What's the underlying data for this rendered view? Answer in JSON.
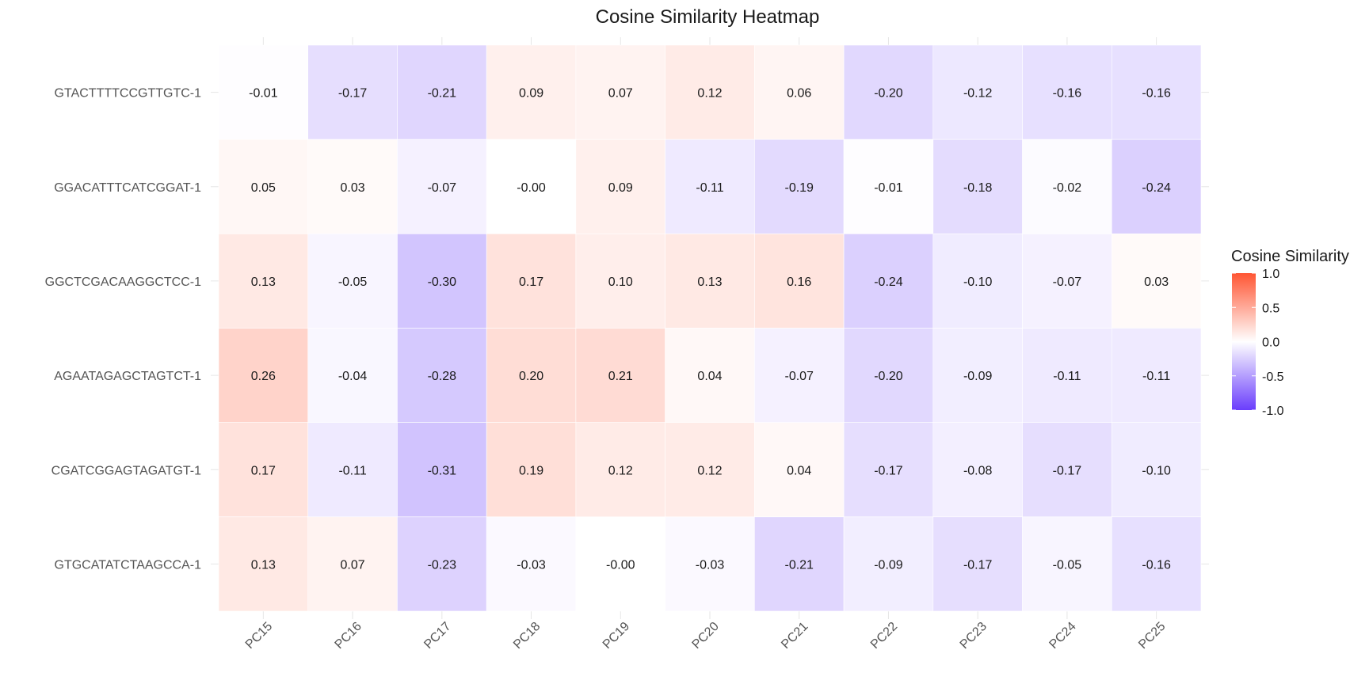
{
  "chart_data": {
    "type": "heatmap",
    "title": "Cosine Similarity Heatmap",
    "xlabel": "",
    "ylabel": "",
    "x_categories": [
      "PC15",
      "PC16",
      "PC17",
      "PC18",
      "PC19",
      "PC20",
      "PC21",
      "PC22",
      "PC23",
      "PC24",
      "PC25"
    ],
    "y_categories": [
      "GTACTTTTCCGTTGTC-1",
      "GGACATTTCATCGGAT-1",
      "GGCTCGACAAGGCTCC-1",
      "AGAATAGAGCTAGTCT-1",
      "CGATCGGAGTAGATGT-1",
      "GTGCATATCTAAGCCA-1"
    ],
    "values": [
      [
        -0.01,
        -0.17,
        -0.21,
        0.09,
        0.07,
        0.12,
        0.06,
        -0.2,
        -0.12,
        -0.16,
        -0.16
      ],
      [
        0.05,
        0.03,
        -0.07,
        -0.0,
        0.09,
        -0.11,
        -0.19,
        -0.01,
        -0.18,
        -0.02,
        -0.24
      ],
      [
        0.13,
        -0.05,
        -0.3,
        0.17,
        0.1,
        0.13,
        0.16,
        -0.24,
        -0.1,
        -0.07,
        0.03
      ],
      [
        0.26,
        -0.04,
        -0.28,
        0.2,
        0.21,
        0.04,
        -0.07,
        -0.2,
        -0.09,
        -0.11,
        -0.11
      ],
      [
        0.17,
        -0.11,
        -0.31,
        0.19,
        0.12,
        0.12,
        0.04,
        -0.17,
        -0.08,
        -0.17,
        -0.1
      ],
      [
        0.13,
        0.07,
        -0.23,
        -0.03,
        -0.0,
        -0.03,
        -0.21,
        -0.09,
        -0.17,
        -0.05,
        -0.16
      ]
    ],
    "value_labels": [
      [
        "-0.01",
        "-0.17",
        "-0.21",
        "0.09",
        "0.07",
        "0.12",
        "0.06",
        "-0.20",
        "-0.12",
        "-0.16",
        "-0.16"
      ],
      [
        "0.05",
        "0.03",
        "-0.07",
        "-0.00",
        "0.09",
        "-0.11",
        "-0.19",
        "-0.01",
        "-0.18",
        "-0.02",
        "-0.24"
      ],
      [
        "0.13",
        "-0.05",
        "-0.30",
        "0.17",
        "0.10",
        "0.13",
        "0.16",
        "-0.24",
        "-0.10",
        "-0.07",
        "0.03"
      ],
      [
        "0.26",
        "-0.04",
        "-0.28",
        "0.20",
        "0.21",
        "0.04",
        "-0.07",
        "-0.20",
        "-0.09",
        "-0.11",
        "-0.11"
      ],
      [
        "0.17",
        "-0.11",
        "-0.31",
        "0.19",
        "0.12",
        "0.12",
        "0.04",
        "-0.17",
        "-0.08",
        "-0.17",
        "-0.10"
      ],
      [
        "0.13",
        "0.07",
        "-0.23",
        "-0.03",
        "-0.00",
        "-0.03",
        "-0.21",
        "-0.09",
        "-0.17",
        "-0.05",
        "-0.16"
      ]
    ],
    "color_scale": {
      "low": "#6a3dfc",
      "mid": "#ffffff",
      "high": "#ff5533",
      "limits": [
        -1.0,
        1.0
      ]
    },
    "legend": {
      "title": "Cosine Similarity",
      "ticks": [
        1.0,
        0.5,
        0.0,
        -0.5,
        -1.0
      ],
      "tick_labels": [
        "1.0",
        "0.5",
        "0.0",
        "-0.5",
        "-1.0"
      ],
      "position": "right"
    },
    "grid": true
  }
}
